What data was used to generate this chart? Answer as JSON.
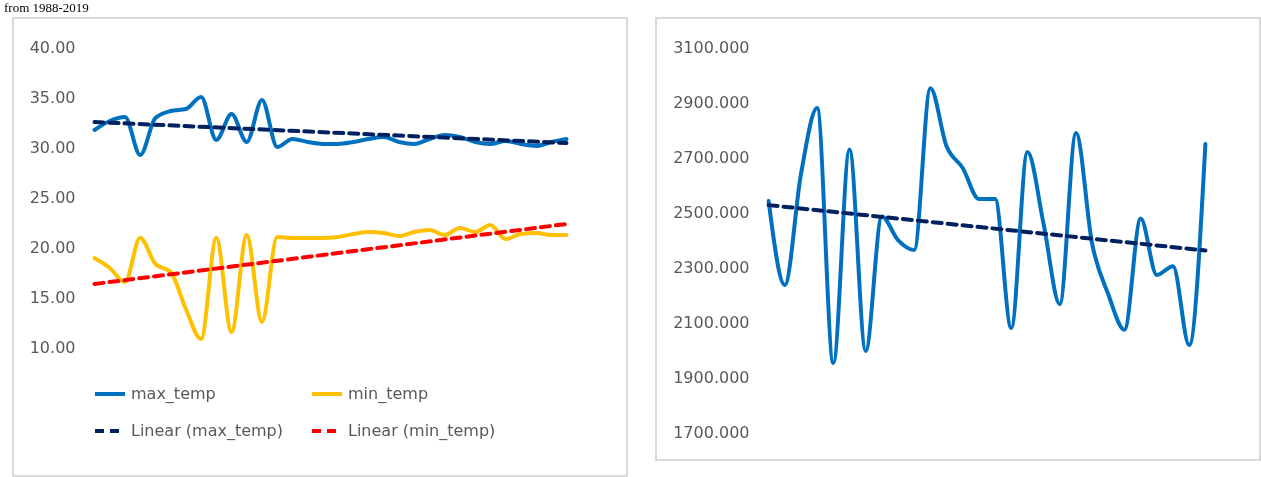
{
  "chart_data": [
    {
      "type": "line",
      "annotations": [
        "from 1988-2019"
      ],
      "categories": [
        null,
        null,
        null,
        null,
        null,
        null,
        null,
        null,
        null,
        null,
        null,
        null,
        null,
        null,
        null,
        null,
        null,
        null,
        null,
        null,
        null,
        null,
        null,
        null,
        null,
        null,
        null,
        null,
        null,
        null,
        null,
        null
      ],
      "series": [
        {
          "name": "max_temp",
          "color": "#0070c0",
          "values": [
            31.7,
            32.6,
            33.0,
            29.2,
            32.9,
            33.6,
            33.8,
            35.0,
            30.7,
            33.3,
            30.5,
            34.7,
            30.0,
            30.8,
            30.5,
            30.3,
            30.3,
            30.5,
            30.8,
            31.0,
            30.5,
            30.3,
            30.8,
            31.2,
            31.0,
            30.5,
            30.3,
            30.6,
            30.3,
            30.1,
            30.5,
            30.8
          ]
        },
        {
          "name": "min_temp",
          "color": "#ffc000",
          "values": [
            18.9,
            17.9,
            16.5,
            20.9,
            18.3,
            17.5,
            13.8,
            10.8,
            20.9,
            11.5,
            21.2,
            12.5,
            21.0,
            20.9,
            20.9,
            20.9,
            21.0,
            21.3,
            21.5,
            21.4,
            21.1,
            21.5,
            21.7,
            21.2,
            21.9,
            21.5,
            22.2,
            20.8,
            21.3,
            21.4,
            21.2,
            21.2
          ]
        },
        {
          "name": "Linear (max_temp)",
          "color": "#002060",
          "line_style": "dashed",
          "values": [
            32.5,
            null,
            null,
            null,
            null,
            null,
            null,
            null,
            null,
            null,
            null,
            null,
            null,
            null,
            null,
            null,
            null,
            null,
            null,
            null,
            null,
            null,
            null,
            null,
            null,
            null,
            null,
            null,
            null,
            null,
            null,
            30.4
          ]
        },
        {
          "name": "Linear (min_temp)",
          "color": "#ff0000",
          "line_style": "dashed",
          "values": [
            16.3,
            null,
            null,
            null,
            null,
            null,
            null,
            null,
            null,
            null,
            null,
            null,
            null,
            null,
            null,
            null,
            null,
            null,
            null,
            null,
            null,
            null,
            null,
            null,
            null,
            null,
            null,
            null,
            null,
            null,
            null,
            22.3
          ]
        }
      ],
      "ylim": [
        10,
        40
      ],
      "yticks": [
        {
          "value": 10,
          "label": "10.00"
        },
        {
          "value": 15,
          "label": "15.00"
        },
        {
          "value": 20,
          "label": "20.00"
        },
        {
          "value": 25,
          "label": "25.00"
        },
        {
          "value": 30,
          "label": "30.00"
        },
        {
          "value": 35,
          "label": "35.00"
        },
        {
          "value": 40,
          "label": "40.00"
        }
      ],
      "grid": false,
      "legend": "bottom",
      "tick_labels": "y"
    },
    {
      "type": "line",
      "categories": [
        null,
        null,
        null,
        null,
        null,
        null,
        null,
        null,
        null,
        null,
        null,
        null,
        null,
        null,
        null,
        null,
        null,
        null,
        null,
        null,
        null,
        null,
        null,
        null,
        null,
        null,
        null,
        null
      ],
      "series": [
        {
          "color": "#0070c0",
          "values": [
            2540,
            2235,
            2638,
            2878,
            1951,
            2727,
            1995,
            2484,
            2398,
            2362,
            2950,
            2739,
            2660,
            2547,
            2547,
            2078,
            2718,
            2456,
            2165,
            2787,
            2384,
            2200,
            2072,
            2476,
            2271,
            2303,
            2016,
            2747
          ]
        },
        {
          "color": "#002060",
          "line_style": "dashed",
          "values": [
            2525,
            null,
            null,
            null,
            null,
            null,
            null,
            null,
            null,
            null,
            null,
            null,
            null,
            null,
            null,
            null,
            null,
            null,
            null,
            null,
            null,
            null,
            null,
            null,
            null,
            null,
            null,
            2360
          ]
        }
      ],
      "ylim": [
        1700,
        3100
      ],
      "yticks": [
        {
          "value": 1700,
          "label": "1700.000"
        },
        {
          "value": 1900,
          "label": "1900.000"
        },
        {
          "value": 2100,
          "label": "2100.000"
        },
        {
          "value": 2300,
          "label": "2300.000"
        },
        {
          "value": 2500,
          "label": "2500.000"
        },
        {
          "value": 2700,
          "label": "2700.000"
        },
        {
          "value": 2900,
          "label": "2900.000"
        },
        {
          "value": 3100,
          "label": "3100.000"
        }
      ],
      "grid": false,
      "legend": false,
      "tick_labels": "y"
    }
  ]
}
